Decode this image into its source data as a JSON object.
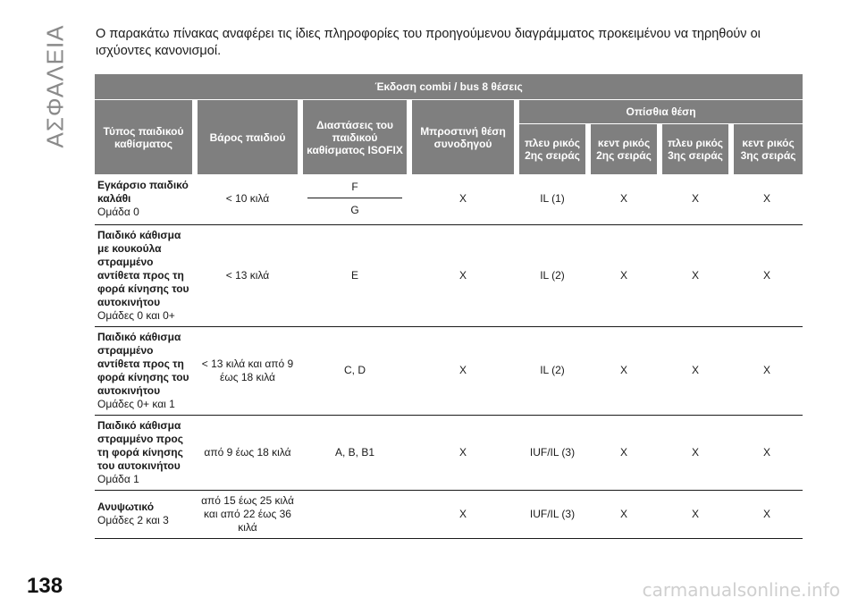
{
  "side_title": "ΑΣΦΑΛΕΙΑ",
  "intro_text": "Ο παρακάτω πίνακας αναφέρει τις ίδιες πληροφορίες του προηγούμενου διαγράμματος προκειμένου να τηρηθούν οι ισχύοντες κανονισμοί.",
  "table": {
    "title": "Έκδοση combi / bus 8 θέσεις",
    "headers": {
      "type": "Τύπος παιδικού καθίσματος",
      "weight": "Βάρος παιδιού",
      "dimensions": "Διαστάσεις του παιδικού καθίσματος ISOFIX",
      "front": "Μπροστινή θέση συνοδηγού",
      "rear": "Οπίσθια θέση",
      "rear_cols": [
        "πλευ ρικός 2ης σειράς",
        "κεντ ρικός 2ης σειράς",
        "πλευ ρικός 3ης σειράς",
        "κεντ ρικός 3ης σειράς"
      ]
    },
    "rows": [
      {
        "type_bold": "Εγκάρσιο παιδικό καλάθι",
        "type_group": "Ομάδα 0",
        "weight": "< 10 κιλά",
        "dimensions": [
          "F",
          "G"
        ],
        "front": "X",
        "rear": [
          "IL (1)",
          "X",
          "X",
          "X"
        ]
      },
      {
        "type_bold": "Παιδικό κάθισμα με κουκούλα στραμμένο αντίθετα προς τη φορά κίνησης του αυτοκινήτου",
        "type_group": "Ομάδες 0 και 0+",
        "weight": "< 13 κιλά",
        "dimensions": "E",
        "front": "X",
        "rear": [
          "IL (2)",
          "X",
          "X",
          "X"
        ]
      },
      {
        "type_bold": "Παιδικό κάθισμα στραμμένο αντίθετα προς τη φορά κίνησης του αυτοκινήτου",
        "type_group": "Ομάδες 0+ και 1",
        "weight": "< 13 κιλά και από 9 έως 18 κιλά",
        "dimensions": "C, D",
        "front": "X",
        "rear": [
          "IL (2)",
          "X",
          "X",
          "X"
        ]
      },
      {
        "type_bold": "Παιδικό κάθισμα στραμμένο προς τη φορά κίνησης του αυτοκινήτου",
        "type_group": "Ομάδα 1",
        "weight": "από 9 έως 18 κιλά",
        "dimensions": "A, B, B1",
        "front": "X",
        "rear": [
          "IUF/IL (3)",
          "X",
          "X",
          "X"
        ]
      },
      {
        "type_bold": "Ανυψωτικό",
        "type_group": "Ομάδες 2 και 3",
        "weight": "από 15 έως 25 κιλά και από 22 έως 36 κιλά",
        "dimensions": "",
        "front": "X",
        "rear": [
          "IUF/IL (3)",
          "X",
          "X",
          "X"
        ]
      }
    ]
  },
  "page_number": "138",
  "watermark": "carmanualsonline.info"
}
